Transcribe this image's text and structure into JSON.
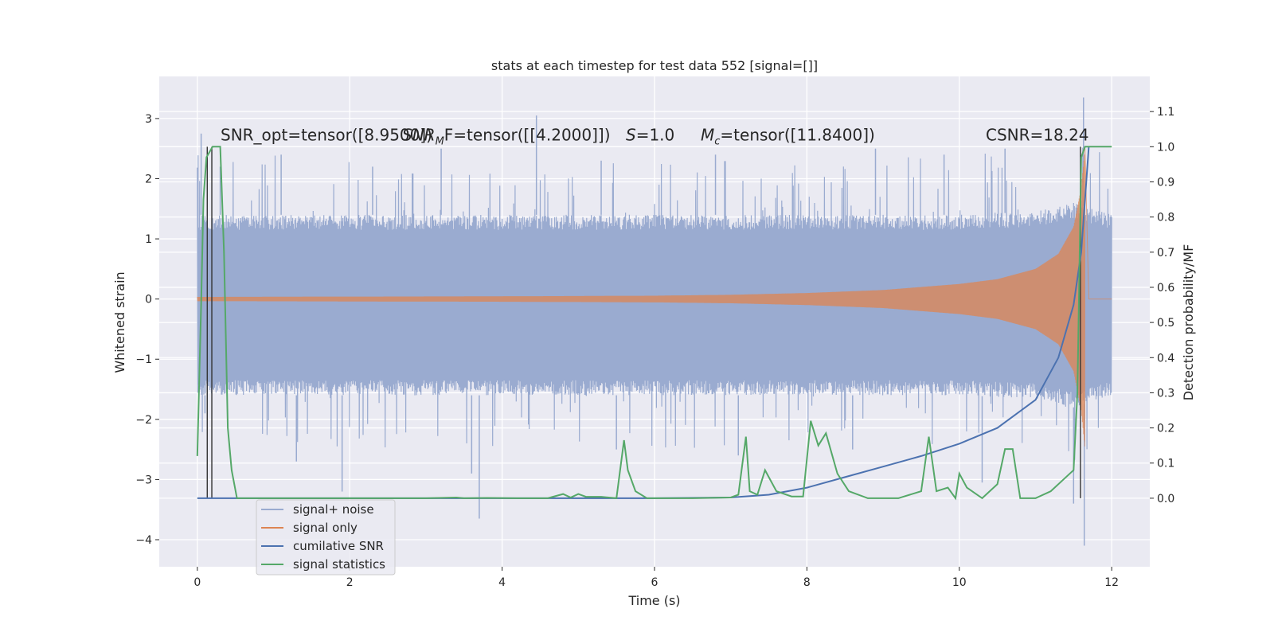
{
  "chart_data": {
    "type": "line",
    "title": "stats at each timestep for test data 552 [signal=[]]",
    "xlabel": "Time (s)",
    "ylabel_left": "Whitened strain",
    "ylabel_right": "Detection probability/MF",
    "xlim": [
      -0.5,
      12.5
    ],
    "ylim_left": [
      -4.45,
      3.7
    ],
    "ylim_right": [
      -0.195,
      1.2
    ],
    "x_ticks": [
      0,
      2,
      4,
      6,
      8,
      10,
      12
    ],
    "x_tick_labels": [
      "0",
      "2",
      "4",
      "6",
      "8",
      "10",
      "12"
    ],
    "y_ticks_left": [
      3,
      2,
      1,
      0,
      -1,
      -2,
      -3,
      -4
    ],
    "y_tick_labels_left": [
      "3",
      "2",
      "1",
      "0",
      "−1",
      "−2",
      "−3",
      "−4"
    ],
    "y_ticks_right": [
      1.1,
      1.0,
      0.9,
      0.8,
      0.7,
      0.6,
      0.5,
      0.4,
      0.3,
      0.2,
      0.1,
      0.0
    ],
    "y_tick_labels_right": [
      "1.1",
      "1.0",
      "0.9",
      "0.8",
      "0.7",
      "0.6",
      "0.5",
      "0.4",
      "0.3",
      "0.2",
      "0.1",
      "0.0"
    ],
    "grid": true,
    "legend_position": "lower-left",
    "annotations": [
      {
        "kind": "text",
        "text": "SNR_opt=tensor([8.9500])"
      },
      {
        "kind": "mf",
        "pre": "SNR",
        "sub": "M",
        "mid": "F=tensor([[4.2000]])"
      },
      {
        "kind": "italic_eq",
        "var": "S",
        "rest": "=1.0"
      },
      {
        "kind": "mc",
        "var": "M",
        "sub": "c",
        "rest": "=tensor([11.8400])"
      },
      {
        "kind": "text",
        "text": "CSNR=18.24"
      }
    ],
    "series": [
      {
        "name": "signal+ noise",
        "color": "#9aabd0",
        "axis": "left",
        "style": "noise band",
        "x_range": [
          0,
          12
        ],
        "envelope_upper": [
          [
            0,
            1.4
          ],
          [
            2,
            1.4
          ],
          [
            4,
            1.4
          ],
          [
            6,
            1.4
          ],
          [
            8,
            1.4
          ],
          [
            10,
            1.4
          ],
          [
            11,
            1.45
          ],
          [
            11.5,
            1.6
          ],
          [
            12,
            1.4
          ]
        ],
        "envelope_lower": [
          [
            0,
            -1.6
          ],
          [
            2,
            -1.6
          ],
          [
            4,
            -1.6
          ],
          [
            6,
            -1.6
          ],
          [
            8,
            -1.6
          ],
          [
            10,
            -1.6
          ],
          [
            11,
            -1.65
          ],
          [
            11.5,
            -1.8
          ],
          [
            12,
            -1.6
          ]
        ],
        "peaks": [
          [
            0.05,
            2.75
          ],
          [
            0.3,
            2.2
          ],
          [
            1.1,
            2.4
          ],
          [
            2.3,
            2.2
          ],
          [
            3.2,
            2.5
          ],
          [
            4.45,
            3.05
          ],
          [
            5.3,
            2.3
          ],
          [
            6.8,
            2.4
          ],
          [
            8.9,
            2.5
          ],
          [
            9.8,
            2.4
          ],
          [
            10.6,
            2.5
          ],
          [
            11.63,
            3.35
          ]
        ],
        "troughs": [
          [
            0.1,
            -1.9
          ],
          [
            1.3,
            -2.7
          ],
          [
            1.9,
            -3.2
          ],
          [
            3.6,
            -2.9
          ],
          [
            3.7,
            -3.65
          ],
          [
            5.5,
            -2.5
          ],
          [
            7.1,
            -2.6
          ],
          [
            8.6,
            -2.5
          ],
          [
            10.3,
            -3.05
          ],
          [
            11.5,
            -3.4
          ],
          [
            11.64,
            -4.1
          ]
        ]
      },
      {
        "name": "signal only",
        "color": "#dd8452",
        "axis": "left",
        "style": "chirp",
        "x_range": [
          0,
          11.65
        ],
        "amplitude": [
          [
            0,
            0.035
          ],
          [
            2,
            0.04
          ],
          [
            4,
            0.045
          ],
          [
            6,
            0.055
          ],
          [
            7,
            0.07
          ],
          [
            8,
            0.1
          ],
          [
            9,
            0.15
          ],
          [
            10,
            0.25
          ],
          [
            10.5,
            0.33
          ],
          [
            11,
            0.5
          ],
          [
            11.3,
            0.75
          ],
          [
            11.5,
            1.2
          ],
          [
            11.6,
            1.85
          ],
          [
            11.65,
            2.5
          ]
        ]
      },
      {
        "name": "cumilative SNR",
        "color": "#4c72b0",
        "axis": "right",
        "points": [
          [
            0,
            0
          ],
          [
            6,
            0
          ],
          [
            7,
            0.002
          ],
          [
            7.5,
            0.01
          ],
          [
            8,
            0.03
          ],
          [
            8.5,
            0.06
          ],
          [
            9,
            0.09
          ],
          [
            9.5,
            0.12
          ],
          [
            10,
            0.155
          ],
          [
            10.5,
            0.2
          ],
          [
            11,
            0.28
          ],
          [
            11.3,
            0.4
          ],
          [
            11.5,
            0.55
          ],
          [
            11.6,
            0.7
          ],
          [
            11.7,
            1.0
          ]
        ]
      },
      {
        "name": "signal statistics",
        "color": "#55a868",
        "axis": "right",
        "points": [
          [
            0,
            0.12
          ],
          [
            0.05,
            0.55
          ],
          [
            0.08,
            0.85
          ],
          [
            0.12,
            0.97
          ],
          [
            0.2,
            1.0
          ],
          [
            0.3,
            1.0
          ],
          [
            0.35,
            0.7
          ],
          [
            0.4,
            0.2
          ],
          [
            0.45,
            0.08
          ],
          [
            0.52,
            0.0
          ],
          [
            1.0,
            0.0
          ],
          [
            2.0,
            0.0
          ],
          [
            3.0,
            0.0
          ],
          [
            3.4,
            0.002
          ],
          [
            3.5,
            0.0
          ],
          [
            3.8,
            0.001
          ],
          [
            4.2,
            0.0
          ],
          [
            4.6,
            0.0
          ],
          [
            4.8,
            0.012
          ],
          [
            4.9,
            0.002
          ],
          [
            5.0,
            0.012
          ],
          [
            5.1,
            0.004
          ],
          [
            5.3,
            0.004
          ],
          [
            5.4,
            0.002
          ],
          [
            5.5,
            0.0
          ],
          [
            5.6,
            0.165
          ],
          [
            5.65,
            0.08
          ],
          [
            5.75,
            0.02
          ],
          [
            5.9,
            0.0
          ],
          [
            6.5,
            0.0
          ],
          [
            7.0,
            0.002
          ],
          [
            7.1,
            0.01
          ],
          [
            7.2,
            0.175
          ],
          [
            7.25,
            0.02
          ],
          [
            7.35,
            0.01
          ],
          [
            7.45,
            0.08
          ],
          [
            7.6,
            0.02
          ],
          [
            7.8,
            0.005
          ],
          [
            7.95,
            0.005
          ],
          [
            8.05,
            0.22
          ],
          [
            8.15,
            0.15
          ],
          [
            8.25,
            0.185
          ],
          [
            8.4,
            0.07
          ],
          [
            8.55,
            0.02
          ],
          [
            8.8,
            0.0
          ],
          [
            9.2,
            0.0
          ],
          [
            9.5,
            0.02
          ],
          [
            9.6,
            0.175
          ],
          [
            9.7,
            0.02
          ],
          [
            9.85,
            0.03
          ],
          [
            9.95,
            0.0
          ],
          [
            10.0,
            0.07
          ],
          [
            10.1,
            0.03
          ],
          [
            10.3,
            0.0
          ],
          [
            10.5,
            0.04
          ],
          [
            10.6,
            0.14
          ],
          [
            10.7,
            0.14
          ],
          [
            10.8,
            0.0
          ],
          [
            11.0,
            0.0
          ],
          [
            11.2,
            0.02
          ],
          [
            11.35,
            0.05
          ],
          [
            11.5,
            0.08
          ],
          [
            11.55,
            0.3
          ],
          [
            11.6,
            0.97
          ],
          [
            11.65,
            1.0
          ],
          [
            12.0,
            1.0
          ]
        ]
      }
    ],
    "vertical_markers": [
      {
        "x": 0.13,
        "color": "#333333"
      },
      {
        "x": 0.19,
        "color": "#333333"
      },
      {
        "x": 11.59,
        "color": "#333333"
      }
    ]
  }
}
